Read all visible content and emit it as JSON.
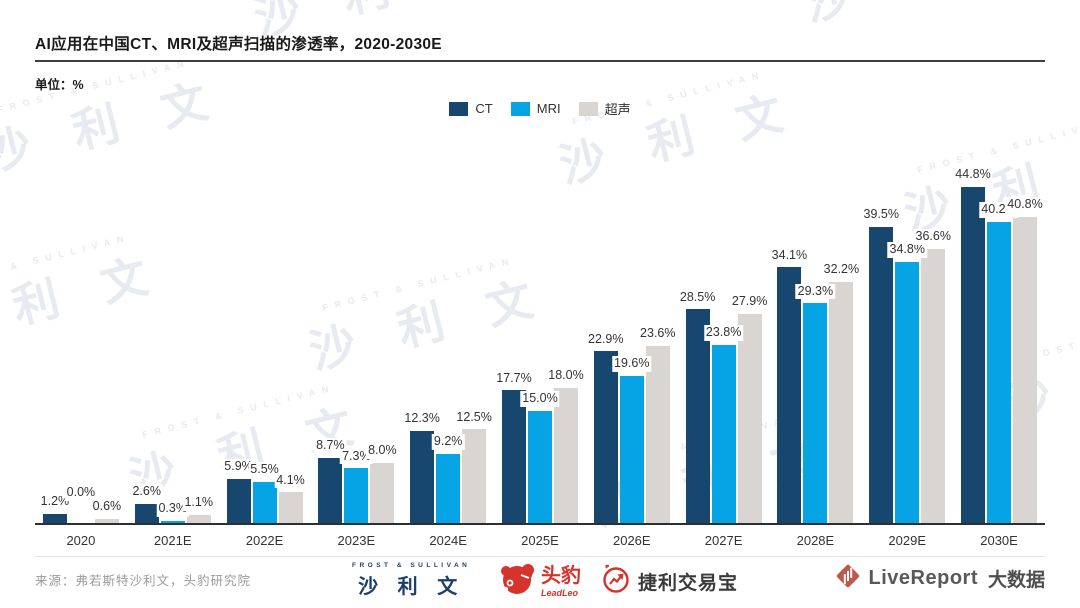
{
  "header": {
    "title": "AI应用在中国CT、MRI及超声扫描的渗透率，2020-2030E",
    "unit_label": "单位：%"
  },
  "legend": [
    {
      "label": "CT",
      "color": "#17476f"
    },
    {
      "label": "MRI",
      "color": "#06a4e5"
    },
    {
      "label": "超声",
      "color": "#d8d5d2"
    }
  ],
  "chart_data": {
    "type": "bar",
    "title": "AI应用在中国CT、MRI及超声扫描的渗透率，2020-2030E",
    "unit": "%",
    "categories": [
      "2020",
      "2021E",
      "2022E",
      "2023E",
      "2024E",
      "2025E",
      "2026E",
      "2027E",
      "2028E",
      "2029E",
      "2030E"
    ],
    "series": [
      {
        "name": "CT",
        "color": "#17476f",
        "values": [
          1.2,
          2.6,
          5.9,
          8.7,
          12.3,
          17.7,
          22.9,
          28.5,
          34.1,
          39.5,
          44.8
        ]
      },
      {
        "name": "MRI",
        "color": "#06a4e5",
        "values": [
          0.0,
          0.3,
          5.5,
          7.3,
          9.2,
          15.0,
          19.6,
          23.8,
          29.3,
          34.8,
          40.2
        ]
      },
      {
        "name": "超声",
        "color": "#d8d5d2",
        "values": [
          0.6,
          1.1,
          4.1,
          8.0,
          12.5,
          18.0,
          23.6,
          27.9,
          32.2,
          36.6,
          40.8
        ]
      }
    ],
    "ylim": [
      0,
      48
    ],
    "grid": false,
    "legend_position": "top",
    "label_format": "{value}%",
    "xlabel": "",
    "ylabel": "单位：%"
  },
  "watermark": {
    "small": "FROST & SULLIVAN",
    "large": "沙 利 文"
  },
  "footer": {
    "source": "来源：弗若斯特沙利文，头豹研究院",
    "logos": {
      "sullivan": {
        "top": "FROST & SULLIVAN",
        "main": "沙 利 文"
      },
      "leadleo": {
        "main": "头豹",
        "sub": "LeadLeo"
      },
      "jltradebao": {
        "label": "捷利交易宝"
      },
      "livereport": {
        "brand": "LiveReport",
        "suffix": "大数据"
      }
    }
  }
}
